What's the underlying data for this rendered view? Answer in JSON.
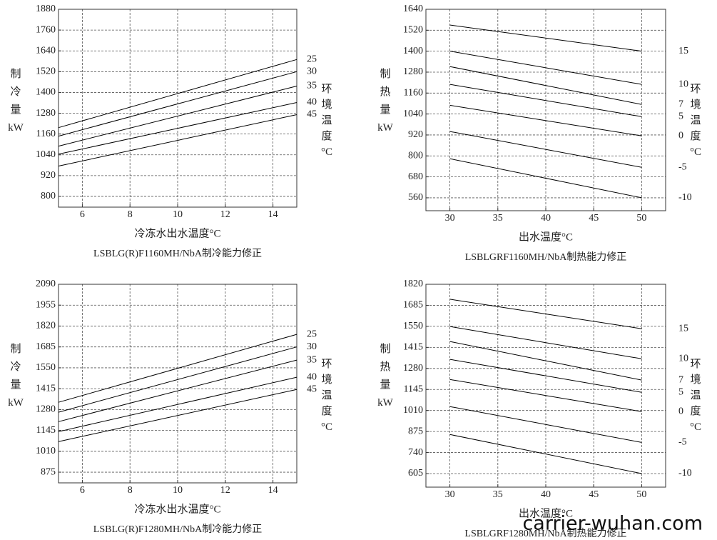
{
  "chart_data": [
    {
      "type": "line",
      "title": "LSBLG(R)F1160MH/NbA制冷能力修正",
      "xlabel": "冷冻水出水温度°C",
      "ylabel": "制冷量kW",
      "y2label": "环境温度°C",
      "x": [
        5,
        15
      ],
      "xlim": [
        5,
        15
      ],
      "ylim": [
        738,
        1880
      ],
      "xticks": [
        6,
        8,
        10,
        12,
        14
      ],
      "yticks": [
        1880,
        1760,
        1640,
        1520,
        1400,
        1280,
        1160,
        1040,
        920,
        800
      ],
      "grid": true,
      "series": [
        {
          "name": "25",
          "color": "#000000",
          "values": [
            1197,
            1590
          ]
        },
        {
          "name": "30",
          "color": "#000000",
          "values": [
            1148,
            1520
          ]
        },
        {
          "name": "35",
          "color": "#000000",
          "values": [
            1090,
            1437
          ]
        },
        {
          "name": "40",
          "color": "#000000",
          "values": [
            1044,
            1342
          ]
        },
        {
          "name": "45",
          "color": "#000000",
          "values": [
            975,
            1272
          ]
        }
      ]
    },
    {
      "type": "line",
      "title": "LSBLGRF1160MH/NbA制热能力修正",
      "xlabel": "出水温度°C",
      "ylabel": "制热量kW",
      "y2label": "环境温度°C",
      "x": [
        30,
        50
      ],
      "xlim": [
        27.5,
        52.5
      ],
      "ylim": [
        486,
        1640
      ],
      "xticks": [
        30,
        35,
        40,
        45,
        50
      ],
      "yticks": [
        1640,
        1520,
        1400,
        1280,
        1160,
        1040,
        920,
        800,
        680,
        560
      ],
      "grid": true,
      "series": [
        {
          "name": "15",
          "color": "#000000",
          "values": [
            1550,
            1400
          ]
        },
        {
          "name": "10",
          "color": "#000000",
          "values": [
            1400,
            1210
          ]
        },
        {
          "name": "7",
          "color": "#000000",
          "values": [
            1312,
            1095
          ]
        },
        {
          "name": "5",
          "color": "#000000",
          "values": [
            1210,
            1025
          ]
        },
        {
          "name": "0",
          "color": "#000000",
          "values": [
            1090,
            915
          ]
        },
        {
          "name": "-5",
          "color": "#000000",
          "values": [
            940,
            735
          ]
        },
        {
          "name": "-10",
          "color": "#000000",
          "values": [
            784,
            560
          ]
        }
      ]
    },
    {
      "type": "line",
      "title": "LSBLG(R)F1280MH/NbA制冷能力修正",
      "xlabel": "冷冻水出水温度°C",
      "ylabel": "制冷量kW",
      "y2label": "环境温度°C",
      "x": [
        5,
        15
      ],
      "xlim": [
        5,
        15
      ],
      "ylim": [
        806,
        2090
      ],
      "xticks": [
        6,
        8,
        10,
        12,
        14
      ],
      "yticks": [
        2090,
        1955,
        1820,
        1685,
        1550,
        1415,
        1280,
        1145,
        1010,
        875
      ],
      "grid": true,
      "series": [
        {
          "name": "25",
          "color": "#000000",
          "values": [
            1327,
            1766
          ]
        },
        {
          "name": "30",
          "color": "#000000",
          "values": [
            1263,
            1685
          ]
        },
        {
          "name": "35",
          "color": "#000000",
          "values": [
            1202,
            1600
          ]
        },
        {
          "name": "40",
          "color": "#000000",
          "values": [
            1137,
            1489
          ]
        },
        {
          "name": "45",
          "color": "#000000",
          "values": [
            1073,
            1410
          ]
        }
      ]
    },
    {
      "type": "line",
      "title": "LSBLGRF1280MH/NbA制热能力修正",
      "xlabel": "出水温度°C",
      "ylabel": "制热量kW",
      "y2label": "环境温度°C",
      "x": [
        30,
        50
      ],
      "xlim": [
        27.5,
        52.5
      ],
      "ylim": [
        518,
        1820
      ],
      "xticks": [
        30,
        35,
        40,
        45,
        50
      ],
      "yticks": [
        1820,
        1685,
        1550,
        1415,
        1280,
        1145,
        1010,
        875,
        740,
        605
      ],
      "grid": true,
      "series": [
        {
          "name": "15",
          "color": "#000000",
          "values": [
            1724,
            1535
          ]
        },
        {
          "name": "10",
          "color": "#000000",
          "values": [
            1549,
            1342
          ]
        },
        {
          "name": "7",
          "color": "#000000",
          "values": [
            1453,
            1205
          ]
        },
        {
          "name": "5",
          "color": "#000000",
          "values": [
            1338,
            1127
          ]
        },
        {
          "name": "0",
          "color": "#000000",
          "values": [
            1209,
            1003
          ]
        },
        {
          "name": "-5",
          "color": "#000000",
          "values": [
            1035,
            805
          ]
        },
        {
          "name": "-10",
          "color": "#000000",
          "values": [
            856,
            605
          ]
        }
      ]
    }
  ],
  "watermark": "carrier-wuhan.com"
}
